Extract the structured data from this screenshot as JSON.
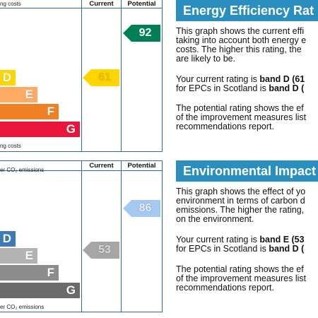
{
  "energy": {
    "caption_top": "ng costs",
    "caption_bottom": "ng costs",
    "col_current": "Current",
    "col_potential": "Potential",
    "bands": [
      {
        "letter": "D",
        "color": "#ffd500"
      },
      {
        "letter": "E",
        "color": "#fcaa65"
      },
      {
        "letter": "F",
        "color": "#ef8023"
      },
      {
        "letter": "G",
        "color": "#e9153b"
      }
    ],
    "current_value": "61",
    "current_color": "#ffd500",
    "potential_value": "92",
    "potential_color": "#008054",
    "title": "Energy Efficiency Rat",
    "para1": [
      "This graph shows the current effi",
      "taking into account both energy e",
      "costs. The higher this rating, the",
      "are likely to be."
    ],
    "para2_line1_pre": "Your current rating is ",
    "para2_line1_bold": "band D (61",
    "para2_line2_pre": "for EPCs in Scotland is ",
    "para2_line2_bold": "band D (",
    "para3": [
      "The potential rating shows the ef",
      "of the improvement measures list",
      "recommendations report."
    ]
  },
  "environment": {
    "caption_top": "er CO₂ emissions",
    "caption_bottom": "er CO₂ emissions",
    "col_current": "Current",
    "col_potential": "Potential",
    "bands": [
      {
        "letter": "D",
        "color": "#3d7ab8"
      },
      {
        "letter": "E",
        "color": "#b3b3b3"
      },
      {
        "letter": "F",
        "color": "#8c8c8c"
      },
      {
        "letter": "G",
        "color": "#6b6b6b"
      }
    ],
    "current_value": "53",
    "current_color": "#a6a6a6",
    "potential_value": "86",
    "potential_color": "#a4c8ef",
    "title": "Environmental Impact",
    "para1": [
      "This graph shows the effect of yo",
      "environment in terms of carbon d",
      "emissions. The higher the rating,",
      "on the environment."
    ],
    "para2_line1_pre": "Your current rating is ",
    "para2_line1_bold": "band E (53",
    "para2_line2_pre": "for EPCs in Scotland is ",
    "para2_line2_bold": "band D (",
    "para3": [
      "The potential rating shows the ef",
      "of the improvement measures list",
      "recommendations report."
    ]
  }
}
